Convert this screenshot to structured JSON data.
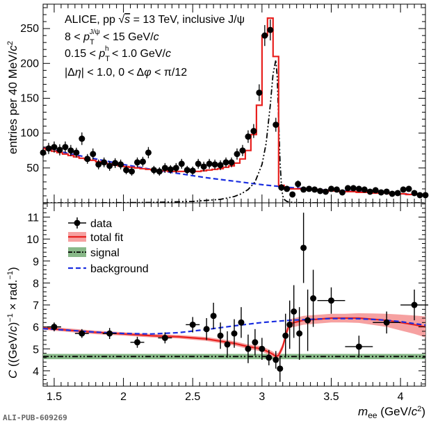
{
  "chart_data": [
    {
      "type": "histogram-fit",
      "ylabel": "entries per 40 MeV/c²",
      "xlim": [
        1.42,
        4.18
      ],
      "ylim": [
        0,
        285
      ],
      "yticks": [
        50,
        100,
        150,
        200,
        250
      ],
      "annotations": [
        "ALICE, pp √s = 13 TeV, inclusive J/ψ",
        "8 < p_T^{J/ψ} < 15 GeV/c",
        "0.15 < p_T^h < 1.0 GeV/c",
        "|Δη| < 1.0, 0 < Δφ < π/12"
      ],
      "ann_lines": [
        {
          "a": "ALICE, pp ",
          "b": "√",
          "c": "s",
          "d": " = 13 TeV, inclusive J/ψ"
        },
        {
          "a": "8 < ",
          "b": "p",
          "c": "T",
          "d": "J/ψ",
          "e": " < 15 GeV/",
          "f": "c"
        },
        {
          "a": "0.15 < ",
          "b": "p",
          "c": "T",
          "d": "h",
          "e": " < 1.0 GeV/",
          "f": "c"
        },
        {
          "a": "|Δ",
          "b": "η",
          "c": "| < 1.0, 0 < Δ",
          "d": "φ",
          "e": " < π/12"
        }
      ],
      "ylabel_parts": {
        "main": "entries per 40 MeV/",
        "c": "c",
        "sup": "2"
      },
      "data_points": {
        "x": [
          1.42,
          1.46,
          1.5,
          1.54,
          1.58,
          1.62,
          1.66,
          1.7,
          1.74,
          1.78,
          1.82,
          1.86,
          1.9,
          1.94,
          1.98,
          2.02,
          2.06,
          2.1,
          2.14,
          2.18,
          2.22,
          2.26,
          2.3,
          2.34,
          2.38,
          2.42,
          2.46,
          2.5,
          2.54,
          2.58,
          2.62,
          2.66,
          2.7,
          2.74,
          2.78,
          2.82,
          2.86,
          2.9,
          2.94,
          2.98,
          3.02,
          3.06,
          3.1,
          3.14,
          3.18,
          3.22,
          3.26,
          3.3,
          3.34,
          3.38,
          3.42,
          3.46,
          3.5,
          3.54,
          3.58,
          3.62,
          3.66,
          3.7,
          3.74,
          3.78,
          3.82,
          3.86,
          3.9,
          3.94,
          3.98,
          4.02,
          4.06,
          4.1,
          4.14,
          4.18
        ],
        "y": [
          72,
          78,
          80,
          76,
          80,
          75,
          72,
          92,
          63,
          70,
          55,
          58,
          53,
          57,
          55,
          47,
          45,
          58,
          59,
          72,
          47,
          45,
          50,
          48,
          50,
          56,
          47,
          46,
          56,
          52,
          56,
          55,
          54,
          58,
          58,
          70,
          75,
          95,
          103,
          158,
          240,
          248,
          112,
          22,
          20,
          12,
          27,
          19,
          20,
          19,
          17,
          16,
          20,
          19,
          15,
          21,
          21,
          20,
          19,
          16,
          18,
          15,
          16,
          13,
          14,
          19,
          20,
          14,
          11,
          11
        ],
        "yerr": [
          7,
          8,
          8,
          8,
          8,
          8,
          7,
          9,
          7,
          8,
          7,
          7,
          7,
          7,
          7,
          6,
          6,
          7,
          7,
          8,
          6,
          6,
          7,
          6,
          7,
          7,
          6,
          6,
          7,
          7,
          7,
          7,
          7,
          7,
          7,
          8,
          8,
          9,
          10,
          12,
          15,
          15,
          10,
          5,
          4,
          4,
          5,
          4,
          4,
          4,
          4,
          4,
          4,
          4,
          4,
          4,
          4,
          4,
          4,
          4,
          4,
          4,
          4,
          4,
          4,
          4,
          4,
          4,
          4,
          4
        ]
      },
      "total_fit_step": {
        "edges": [
          1.4,
          1.44,
          1.48,
          1.52,
          1.56,
          1.6,
          1.64,
          1.68,
          1.72,
          1.76,
          1.8,
          1.84,
          1.88,
          1.92,
          1.96,
          2.0,
          2.04,
          2.08,
          2.12,
          2.16,
          2.2,
          2.24,
          2.28,
          2.32,
          2.36,
          2.4,
          2.44,
          2.48,
          2.52,
          2.56,
          2.6,
          2.64,
          2.68,
          2.72,
          2.76,
          2.8,
          2.84,
          2.88,
          2.92,
          2.96,
          3.0,
          3.04,
          3.08,
          3.12,
          3.16,
          3.2,
          3.24,
          3.28,
          3.32,
          3.36,
          3.4,
          3.44,
          3.48,
          3.52,
          3.56,
          3.6,
          3.64,
          3.68,
          3.72,
          3.76,
          3.8,
          3.84,
          3.88,
          3.92,
          3.96,
          4.0,
          4.04,
          4.08,
          4.12,
          4.16,
          4.2
        ],
        "values": [
          78,
          76,
          74,
          72,
          70,
          68,
          66,
          64,
          62,
          61,
          59,
          57,
          56,
          54,
          53,
          52,
          51,
          50,
          49,
          48,
          47,
          46,
          46,
          45,
          45,
          45,
          45,
          45,
          45,
          46,
          47,
          48,
          49,
          51,
          53,
          57,
          63,
          75,
          98,
          140,
          240,
          265,
          210,
          25,
          20,
          20,
          20,
          20,
          19,
          19,
          18,
          18,
          17,
          17,
          16,
          16,
          16,
          15,
          15,
          15,
          14,
          14,
          14,
          13,
          13,
          13,
          12,
          12,
          12,
          12
        ]
      },
      "signal_curve": {
        "x": [
          1.42,
          1.8,
          2.2,
          2.5,
          2.7,
          2.8,
          2.85,
          2.9,
          2.95,
          3.0,
          3.03,
          3.06,
          3.08,
          3.1,
          3.11,
          3.12,
          3.13,
          3.14,
          3.15,
          3.16,
          3.18,
          3.2,
          3.25,
          3.3,
          3.4,
          3.6,
          3.8,
          4.0,
          4.18
        ],
        "y": [
          0,
          0,
          0.5,
          2,
          5,
          9,
          13,
          19,
          30,
          55,
          85,
          140,
          185,
          205,
          180,
          120,
          60,
          25,
          10,
          5,
          2,
          1,
          0.3,
          0.1,
          0,
          0,
          0,
          0,
          0
        ]
      },
      "background_curve": {
        "x": [
          1.4,
          1.6,
          1.8,
          2.0,
          2.2,
          2.4,
          2.6,
          2.8,
          3.0,
          3.2,
          3.4,
          3.6,
          3.8,
          4.0,
          4.2
        ],
        "y": [
          80,
          71,
          63,
          55,
          48,
          42,
          36,
          31,
          26,
          22,
          19,
          17,
          15,
          13,
          11
        ]
      }
    },
    {
      "type": "scatter-fit",
      "xlabel_parts": {
        "m": "m",
        "sub": "ee",
        "main": " (GeV/",
        "c": "c",
        "sup": "2",
        "end": ")"
      },
      "ylabel_parts": {
        "C": "C",
        "a": " ((GeV/",
        "c": "c",
        "b": ")",
        "sup1": "−1",
        "d": " × rad.",
        "sup2": "−1",
        "e": ")"
      },
      "xlim": [
        1.42,
        4.18
      ],
      "ylim": [
        3.3,
        11.65
      ],
      "xticks": [
        1.5,
        2,
        2.5,
        3,
        3.5,
        4
      ],
      "xtick_labels": [
        "1.5",
        "2",
        "2.5",
        "3",
        "3.5",
        "4"
      ],
      "yticks": [
        4,
        5,
        6,
        7,
        8,
        9,
        10,
        11
      ],
      "legend": {
        "position": "top-left",
        "entries": [
          "data",
          "total fit",
          "signal",
          "background"
        ]
      },
      "data_points": {
        "x": [
          1.5,
          1.7,
          1.9,
          2.1,
          2.3,
          2.5,
          2.6,
          2.65,
          2.7,
          2.75,
          2.8,
          2.85,
          2.9,
          2.95,
          3.0,
          3.05,
          3.1,
          3.13,
          3.17,
          3.2,
          3.23,
          3.27,
          3.3,
          3.33,
          3.37,
          3.5,
          3.7,
          3.9,
          4.1
        ],
        "y": [
          6.0,
          5.7,
          5.7,
          5.3,
          5.5,
          6.1,
          5.9,
          6.5,
          5.6,
          5.2,
          5.7,
          6.2,
          5.0,
          5.3,
          5.0,
          4.6,
          4.5,
          4.1,
          5.6,
          6.1,
          6.7,
          5.7,
          9.6,
          6.3,
          7.3,
          7.2,
          5.1,
          6.2,
          7.0
        ],
        "yerr": [
          0.2,
          0.2,
          0.25,
          0.25,
          0.25,
          0.35,
          0.5,
          0.6,
          0.6,
          0.6,
          0.65,
          0.7,
          0.65,
          0.6,
          0.5,
          0.35,
          0.4,
          0.6,
          1.0,
          1.1,
          1.2,
          1.2,
          1.6,
          1.4,
          1.3,
          0.6,
          0.5,
          0.5,
          0.7
        ],
        "xerr": [
          0.05,
          0.05,
          0.05,
          0.05,
          0.05,
          0.05,
          0.02,
          0.02,
          0.02,
          0.02,
          0.02,
          0.02,
          0.02,
          0.02,
          0.02,
          0.02,
          0.02,
          0.02,
          0.02,
          0.02,
          0.02,
          0.02,
          0.02,
          0.02,
          0.02,
          0.1,
          0.1,
          0.1,
          0.1
        ]
      },
      "total_fit": {
        "x": [
          1.42,
          1.6,
          1.8,
          2.0,
          2.2,
          2.4,
          2.6,
          2.7,
          2.8,
          2.9,
          3.0,
          3.05,
          3.08,
          3.1,
          3.12,
          3.15,
          3.18,
          3.2,
          3.3,
          3.4,
          3.5,
          3.6,
          3.7,
          3.8,
          3.9,
          4.0,
          4.1,
          4.18
        ],
        "y": [
          5.95,
          5.85,
          5.75,
          5.68,
          5.6,
          5.55,
          5.45,
          5.35,
          5.25,
          5.1,
          5.0,
          4.85,
          4.75,
          4.65,
          4.7,
          5.1,
          5.8,
          6.15,
          6.3,
          6.35,
          6.4,
          6.4,
          6.4,
          6.35,
          6.3,
          6.2,
          6.1,
          6.0
        ],
        "band": [
          0.08,
          0.08,
          0.08,
          0.08,
          0.08,
          0.08,
          0.09,
          0.09,
          0.1,
          0.1,
          0.12,
          0.12,
          0.12,
          0.12,
          0.14,
          0.15,
          0.18,
          0.2,
          0.2,
          0.2,
          0.2,
          0.2,
          0.22,
          0.26,
          0.3,
          0.36,
          0.42,
          0.48
        ]
      },
      "signal_level": {
        "y": 4.65,
        "band": 0.12
      },
      "background_curve": {
        "x": [
          1.42,
          1.6,
          1.8,
          2.0,
          2.2,
          2.4,
          2.6,
          2.8,
          3.0,
          3.1,
          3.2,
          3.3,
          3.4,
          3.5,
          3.6,
          3.7,
          3.8,
          3.9,
          4.0,
          4.1,
          4.18
        ],
        "y": [
          5.92,
          5.85,
          5.76,
          5.7,
          5.68,
          5.74,
          5.88,
          6.05,
          6.2,
          6.25,
          6.3,
          6.33,
          6.36,
          6.38,
          6.38,
          6.37,
          6.34,
          6.3,
          6.24,
          6.15,
          6.08
        ]
      }
    }
  ],
  "footer": {
    "id": "ALI-PUB-609269"
  },
  "colors": {
    "fit": "#e8201e",
    "fit_band": "#f6a1a1",
    "signal_band": "#88b888",
    "background": "#1a2ee0",
    "data": "#000000"
  }
}
